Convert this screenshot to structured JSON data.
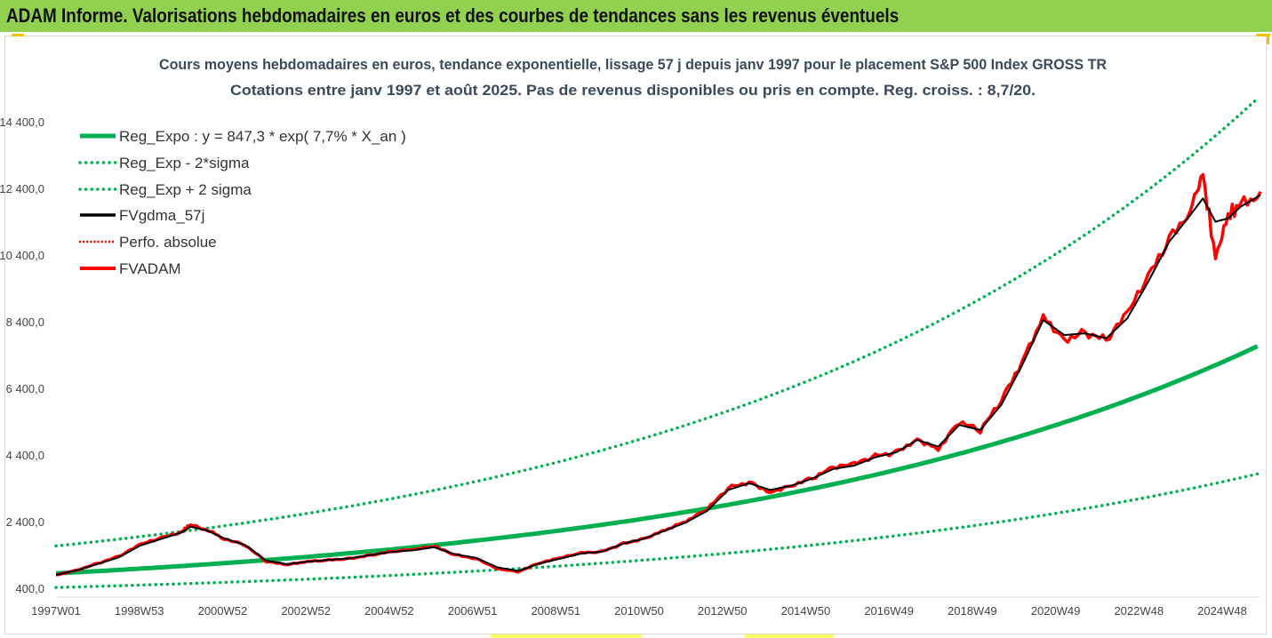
{
  "header": {
    "title": "ADAM Informe. Valorisations hebdomadaires en euros et des courbes de tendances sans les revenus éventuels"
  },
  "colors": {
    "banner": "#92d050",
    "reg": "#00b050",
    "gdma": "#000000",
    "adam": "#ff0000",
    "corner": "#f2c200"
  },
  "chart_data": {
    "type": "line",
    "title": "Cours moyens hebdomadaires en euros, tendance exponentielle, lissage 57 j depuis janv 1997 pour le placement S&P 500 Index GROSS TR",
    "subtitle": "Cotations entre janv 1997 et août 2025.  Pas de revenus disponibles ou pris en compte. Reg. croiss. : 8,7/20.",
    "x_tick_labels": [
      "1997W01",
      "1998W53",
      "2000W52",
      "2002W52",
      "2004W52",
      "2006W51",
      "2008W51",
      "2010W50",
      "2012W50",
      "2014W50",
      "2016W49",
      "2018W49",
      "2020W49",
      "2022W48",
      "2024W48"
    ],
    "y_tick_labels": [
      "400,0",
      "2 400,0",
      "4 400,0",
      "6 400,0",
      "8 400,0",
      "10 400,0",
      "12 400,0",
      "14 400,0"
    ],
    "y_ticks": [
      400,
      2400,
      4400,
      6400,
      8400,
      10400,
      12400,
      14400
    ],
    "ylim": [
      400,
      15600
    ],
    "xlim": [
      0,
      28.67
    ],
    "grid": false,
    "legend_position": "top-left",
    "legend": [
      "Reg_Expo : y = 847,3 * exp( 7,7% *  X_an )",
      "Reg_Exp - 2*sigma",
      "Reg_Exp + 2 sigma",
      "FVgdma_57j",
      "Perfo. absolue",
      "FVADAM"
    ],
    "trend": {
      "a": 847.3,
      "rate": 0.077,
      "lower_factor": 0.5,
      "upper_factor": 1.97
    },
    "series": [
      {
        "name": "FVADAM",
        "x_years": [
          0,
          0.5,
          1,
          1.5,
          2,
          2.5,
          3,
          3.2,
          3.6,
          4,
          4.5,
          5,
          5.5,
          6,
          6.5,
          7,
          7.5,
          8,
          8.5,
          9,
          9.5,
          10,
          10.5,
          11,
          11.5,
          12,
          12.5,
          13,
          13.5,
          14,
          14.5,
          15,
          15.5,
          16,
          16.5,
          17,
          17.5,
          18,
          18.5,
          19,
          19.5,
          20,
          20.5,
          21,
          21.5,
          22,
          22.5,
          23,
          23.5,
          24,
          24.5,
          25,
          25.5,
          26,
          26.5,
          27,
          27.3,
          27.6,
          27.9,
          28.2,
          28.67
        ],
        "values": [
          800,
          950,
          1150,
          1350,
          1700,
          1900,
          2100,
          2300,
          2150,
          1900,
          1700,
          1200,
          1100,
          1200,
          1250,
          1300,
          1400,
          1500,
          1550,
          1650,
          1400,
          1300,
          1000,
          900,
          1150,
          1300,
          1450,
          1500,
          1750,
          1900,
          2150,
          2400,
          2750,
          3400,
          3600,
          3300,
          3500,
          3700,
          4000,
          4100,
          4350,
          4500,
          4900,
          4600,
          5400,
          5100,
          6000,
          7200,
          8600,
          7900,
          8100,
          7800,
          8600,
          9700,
          10900,
          11800,
          12800,
          10300,
          11600,
          11900,
          12300
        ]
      },
      {
        "name": "FVgdma_57j",
        "x_years": [
          0,
          0.5,
          1,
          1.5,
          2,
          2.5,
          3,
          3.2,
          3.6,
          4,
          4.5,
          5,
          5.5,
          6,
          6.5,
          7,
          7.5,
          8,
          8.5,
          9,
          9.5,
          10,
          10.5,
          11,
          11.5,
          12,
          12.5,
          13,
          13.5,
          14,
          14.5,
          15,
          15.5,
          16,
          16.5,
          17,
          17.5,
          18,
          18.5,
          19,
          19.5,
          20,
          20.5,
          21,
          21.5,
          22,
          22.5,
          23,
          23.5,
          24,
          24.5,
          25,
          25.5,
          26,
          26.5,
          27,
          27.3,
          27.6,
          27.9,
          28.2,
          28.67
        ],
        "values": [
          800,
          940,
          1130,
          1330,
          1680,
          1880,
          2080,
          2250,
          2130,
          1900,
          1700,
          1230,
          1120,
          1200,
          1250,
          1300,
          1400,
          1490,
          1540,
          1630,
          1420,
          1310,
          1030,
          920,
          1140,
          1290,
          1440,
          1500,
          1740,
          1890,
          2130,
          2380,
          2720,
          3350,
          3550,
          3350,
          3480,
          3690,
          3980,
          4080,
          4330,
          4480,
          4850,
          4650,
          5300,
          5150,
          5900,
          7100,
          8450,
          8000,
          8050,
          7900,
          8500,
          9600,
          10800,
          11600,
          12100,
          11400,
          11500,
          11850,
          12200
        ]
      }
    ]
  }
}
